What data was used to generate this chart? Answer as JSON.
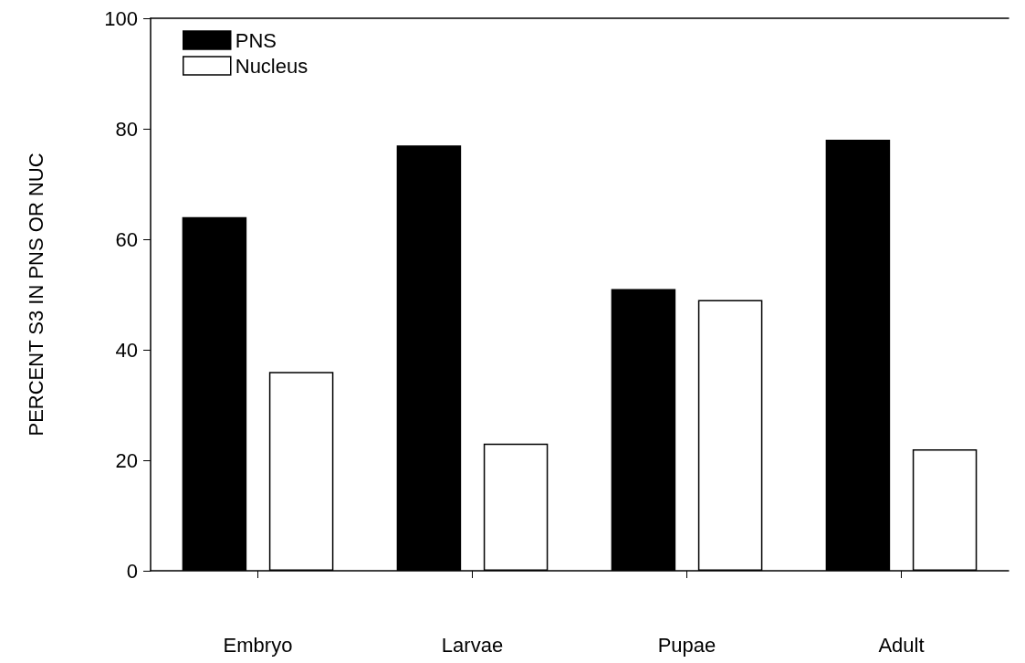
{
  "chart_data": {
    "type": "bar",
    "ylabel": "PERCENT S3 IN PNS OR NUC",
    "categories": [
      "Embryo",
      "Larvae",
      "Pupae",
      "Adult"
    ],
    "series": [
      {
        "name": "PNS",
        "color": "#000000",
        "values": [
          64,
          77,
          51,
          78
        ]
      },
      {
        "name": "Nucleus",
        "color": "#ffffff",
        "values": [
          36,
          23,
          49,
          22
        ]
      }
    ],
    "ylim": [
      0,
      100
    ],
    "yticks": [
      0,
      20,
      40,
      60,
      80,
      100
    ],
    "grid": false,
    "legend": "top left"
  }
}
